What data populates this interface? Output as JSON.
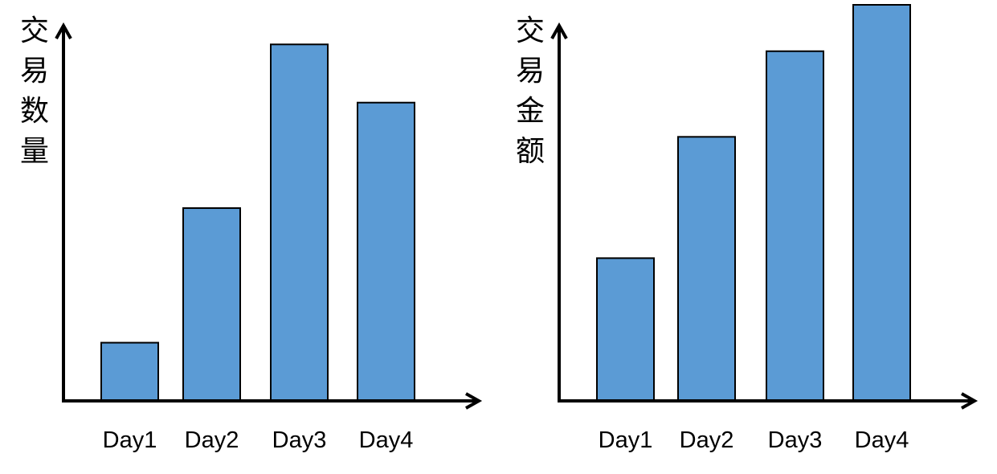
{
  "chart_data": [
    {
      "type": "bar",
      "ylabel": "交易数量",
      "xlabel": "",
      "categories": [
        "Day1",
        "Day2",
        "Day3",
        "Day4"
      ],
      "values": [
        1.6,
        5.3,
        9.8,
        8.2
      ],
      "ylim": [
        0,
        10.8
      ],
      "yticks": false,
      "grid": false,
      "bar_color": "#5b9bd5"
    },
    {
      "type": "bar",
      "ylabel": "交易金额",
      "xlabel": "",
      "categories": [
        "Day1",
        "Day2",
        "Day3",
        "Day4"
      ],
      "values": [
        4.0,
        7.4,
        9.8,
        11.1
      ],
      "ylim": [
        0,
        11.1
      ],
      "yticks": false,
      "grid": false,
      "bar_color": "#5b9bd5"
    }
  ]
}
